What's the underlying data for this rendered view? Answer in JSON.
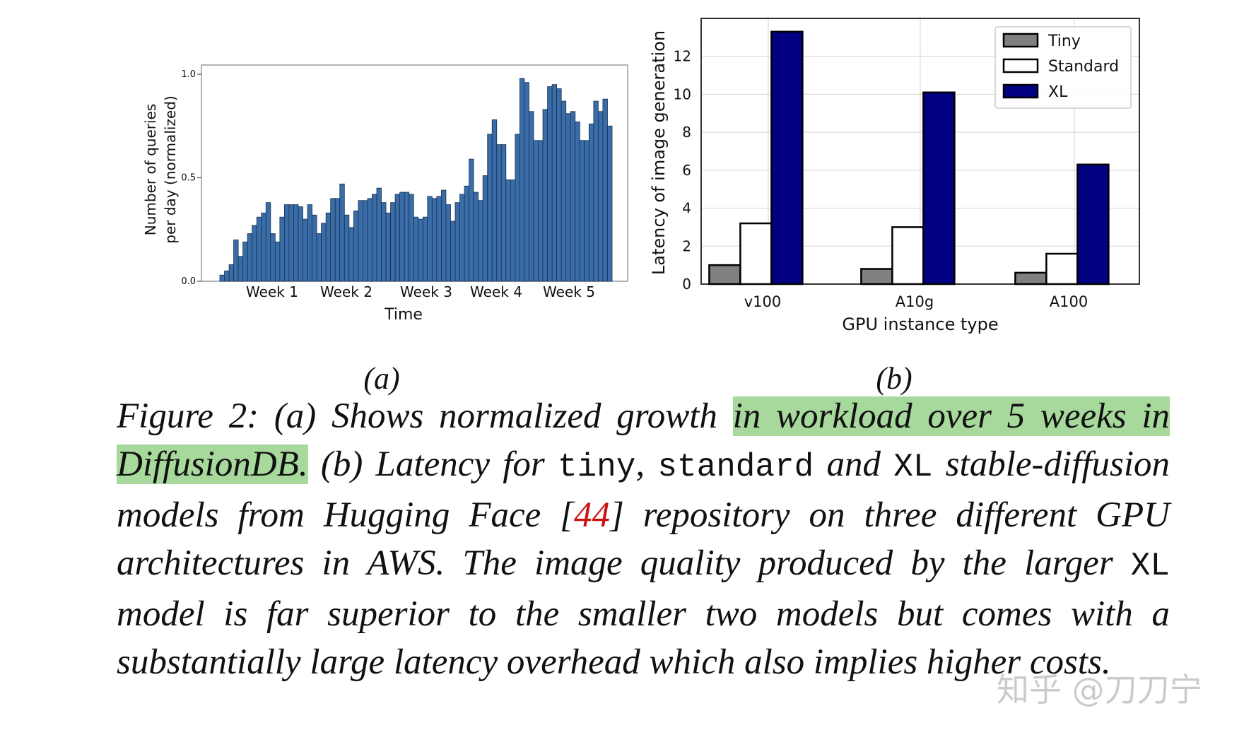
{
  "chart_data": [
    {
      "type": "bar",
      "panel": "(a)",
      "xlabel": "Time",
      "ylabel": "Number of queries per day (normalized)",
      "ylabel_lines": [
        "Number of queries",
        "per day (normalized)"
      ],
      "ylim": [
        0,
        1.0
      ],
      "yticks": [
        "0.0",
        "0.5",
        "1.0"
      ],
      "xtick_labels": [
        "Week 1",
        "Week 2",
        "Week 3",
        "Week 4",
        "Week 5"
      ],
      "bar_color": "#3a6da8",
      "values": [
        0.03,
        0.05,
        0.08,
        0.2,
        0.12,
        0.19,
        0.23,
        0.27,
        0.31,
        0.33,
        0.38,
        0.23,
        0.19,
        0.31,
        0.37,
        0.37,
        0.37,
        0.36,
        0.3,
        0.37,
        0.32,
        0.23,
        0.28,
        0.33,
        0.4,
        0.4,
        0.47,
        0.32,
        0.26,
        0.34,
        0.39,
        0.39,
        0.4,
        0.42,
        0.45,
        0.38,
        0.33,
        0.38,
        0.42,
        0.43,
        0.43,
        0.42,
        0.31,
        0.3,
        0.31,
        0.41,
        0.4,
        0.41,
        0.44,
        0.37,
        0.29,
        0.38,
        0.42,
        0.46,
        0.59,
        0.43,
        0.39,
        0.51,
        0.71,
        0.78,
        0.66,
        0.66,
        0.49,
        0.49,
        0.71,
        0.98,
        0.96,
        0.82,
        0.68,
        0.68,
        0.83,
        0.94,
        0.95,
        0.93,
        0.87,
        0.81,
        0.82,
        0.77,
        0.68,
        0.68,
        0.76,
        0.87,
        0.82,
        0.88,
        0.75
      ],
      "grid": false
    },
    {
      "type": "bar",
      "panel": "(b)",
      "xlabel": "GPU instance type",
      "ylabel": "Latency of image generation",
      "ylim": [
        0,
        14
      ],
      "yticks": [
        "0",
        "2",
        "4",
        "6",
        "8",
        "10",
        "12"
      ],
      "categories": [
        "v100",
        "A10g",
        "A100"
      ],
      "series": [
        {
          "name": "Tiny",
          "color": "#808080",
          "values": [
            1.0,
            0.8,
            0.6
          ]
        },
        {
          "name": "Standard",
          "color": "#ffffff",
          "values": [
            3.2,
            3.0,
            1.6
          ]
        },
        {
          "name": "XL",
          "color": "#000080",
          "values": [
            13.3,
            10.1,
            6.3
          ]
        }
      ],
      "legend": "top-right",
      "grid": true
    }
  ],
  "labels": {
    "panel_a": "(a)",
    "panel_b": "(b)"
  },
  "caption": {
    "p1": "Figure 2: (a) Shows normalized growth ",
    "h1": "in workload over 5 weeks in DiffusionDB.",
    "p2": " (b) Latency for ",
    "code_tiny": "tiny",
    "p3": ", ",
    "code_standard": "standard",
    "p4": " and ",
    "code_xl1": "XL",
    "p5": " stable-diffusion models from Hugging Face [",
    "ref": "44",
    "p6": "] repository on three different GPU architectures in AWS. The image quality produced by the larger ",
    "code_xl2": "XL",
    "p7": " model is far superior to the smaller two models but comes with a substantially large latency overhead which also implies higher costs."
  },
  "watermark": "知乎 @刀刀宁"
}
